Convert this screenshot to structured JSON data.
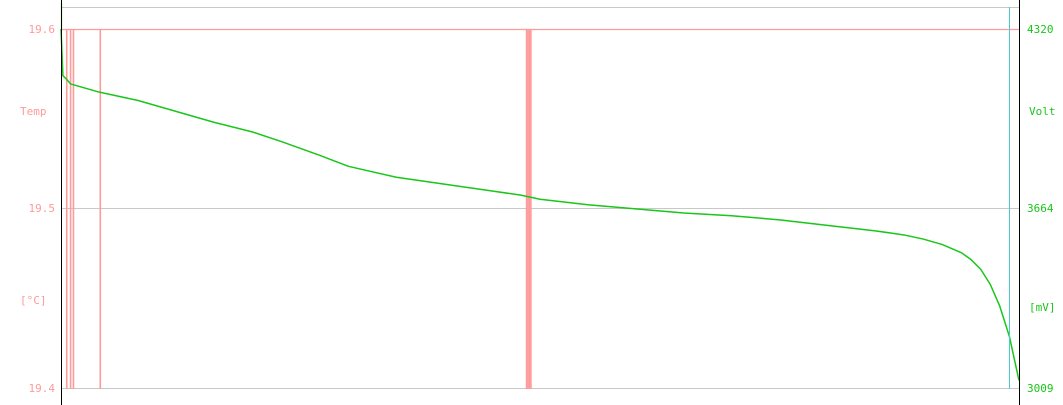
{
  "chart_data": {
    "type": "line",
    "title": "",
    "colors": {
      "temp": "#ff9a9a",
      "volt": "#19c619",
      "grid": "#c8c8c8",
      "frame": "#000000",
      "cursor": "#4cc8d0"
    },
    "left_axis": {
      "label": "Temp",
      "unit": "[°C]",
      "ticks": [
        "19.6",
        "19.5",
        "19.4"
      ],
      "range": [
        19.4,
        19.6
      ]
    },
    "right_axis": {
      "label": "Volt",
      "unit": "[mV]",
      "ticks": [
        "4320",
        "3664",
        "3009"
      ],
      "range": [
        3009,
        4320
      ]
    },
    "grid": true,
    "x_range": [
      0,
      100
    ],
    "series": [
      {
        "axis": "right",
        "x": [
          0,
          0.2,
          0.5,
          1,
          2,
          4,
          6,
          8,
          10,
          13,
          16,
          20,
          23,
          25,
          27,
          30,
          35,
          40,
          45,
          48,
          50,
          55,
          60,
          65,
          70,
          75,
          80,
          85,
          88,
          90,
          92,
          94,
          95,
          96,
          97,
          98,
          99,
          100
        ],
        "values": [
          4320,
          4150,
          4140,
          4120,
          4110,
          4090,
          4075,
          4060,
          4040,
          4010,
          3980,
          3945,
          3910,
          3885,
          3860,
          3820,
          3780,
          3755,
          3730,
          3715,
          3700,
          3680,
          3665,
          3650,
          3640,
          3625,
          3605,
          3585,
          3570,
          3555,
          3535,
          3505,
          3480,
          3445,
          3390,
          3310,
          3200,
          3040
        ]
      },
      {
        "axis": "left",
        "spikes_x": [
          0.6,
          1.0,
          1.3,
          4.1,
          48.6,
          48.75,
          48.9,
          49.05
        ]
      }
    ]
  }
}
